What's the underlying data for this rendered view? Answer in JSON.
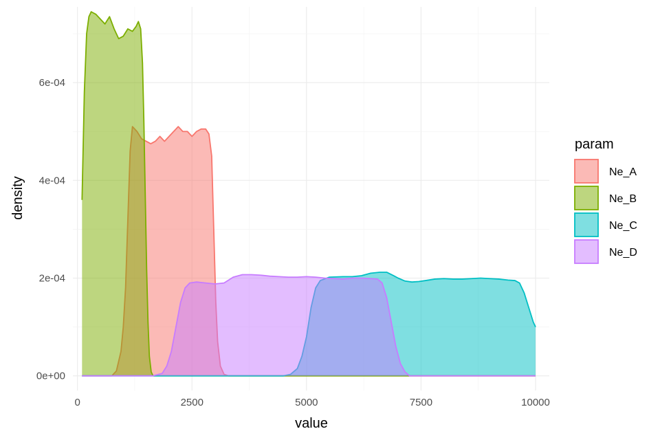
{
  "chart_data": {
    "type": "area",
    "subtype": "density",
    "title": "",
    "xlabel": "value",
    "ylabel": "density",
    "xlim": [
      -100,
      10300
    ],
    "ylim": [
      -3e-05,
      0.000755
    ],
    "x_ticks": [
      0,
      2500,
      5000,
      7500,
      10000
    ],
    "x_tick_labels": [
      "0",
      "2500",
      "5000",
      "7500",
      "10000"
    ],
    "y_ticks": [
      0,
      0.0002,
      0.0004,
      0.0006
    ],
    "y_tick_labels": [
      "0e+00",
      "2e-04",
      "4e-04",
      "6e-04"
    ],
    "grid": true,
    "fill_opacity": 0.5,
    "legend": {
      "title": "param",
      "position": "right"
    },
    "series": [
      {
        "name": "Ne_A",
        "color": "#F8766D",
        "points": [
          [
            100,
            0
          ],
          [
            750,
            0
          ],
          [
            850,
            1e-05
          ],
          [
            950,
            5e-05
          ],
          [
            1000,
            0.0001
          ],
          [
            1050,
            0.00018
          ],
          [
            1100,
            0.00032
          ],
          [
            1150,
            0.00046
          ],
          [
            1200,
            0.00051
          ],
          [
            1300,
            0.0005
          ],
          [
            1400,
            0.000485
          ],
          [
            1500,
            0.00048
          ],
          [
            1600,
            0.000475
          ],
          [
            1700,
            0.00048
          ],
          [
            1800,
            0.00049
          ],
          [
            1900,
            0.00048
          ],
          [
            2000,
            0.00049
          ],
          [
            2100,
            0.0005
          ],
          [
            2200,
            0.00051
          ],
          [
            2300,
            0.0005
          ],
          [
            2400,
            0.0005
          ],
          [
            2500,
            0.00049
          ],
          [
            2600,
            0.0005
          ],
          [
            2700,
            0.000505
          ],
          [
            2800,
            0.000505
          ],
          [
            2870,
            0.000495
          ],
          [
            2930,
            0.00045
          ],
          [
            2960,
            0.00035
          ],
          [
            2990,
            0.00025
          ],
          [
            3020,
            0.00015
          ],
          [
            3060,
            7e-05
          ],
          [
            3120,
            2e-05
          ],
          [
            3200,
            3e-06
          ],
          [
            3300,
            0
          ],
          [
            10000,
            0
          ]
        ]
      },
      {
        "name": "Ne_B",
        "color": "#7CAE00",
        "points": [
          [
            100,
            0.00036
          ],
          [
            150,
            0.00058
          ],
          [
            200,
            0.0007
          ],
          [
            250,
            0.000735
          ],
          [
            300,
            0.000745
          ],
          [
            400,
            0.00074
          ],
          [
            500,
            0.00073
          ],
          [
            600,
            0.00072
          ],
          [
            700,
            0.000735
          ],
          [
            800,
            0.00071
          ],
          [
            900,
            0.00069
          ],
          [
            1000,
            0.000695
          ],
          [
            1100,
            0.00071
          ],
          [
            1200,
            0.000705
          ],
          [
            1280,
            0.000715
          ],
          [
            1330,
            0.000725
          ],
          [
            1380,
            0.00071
          ],
          [
            1420,
            0.00064
          ],
          [
            1450,
            0.00052
          ],
          [
            1480,
            0.00037
          ],
          [
            1510,
            0.00022
          ],
          [
            1540,
            0.00011
          ],
          [
            1570,
            4e-05
          ],
          [
            1610,
            8e-06
          ],
          [
            1650,
            0
          ],
          [
            10000,
            0
          ]
        ]
      },
      {
        "name": "Ne_C",
        "color": "#00BFC4",
        "points": [
          [
            100,
            0
          ],
          [
            4500,
            0
          ],
          [
            4650,
            3e-06
          ],
          [
            4800,
            1.5e-05
          ],
          [
            4900,
            4e-05
          ],
          [
            5000,
            8e-05
          ],
          [
            5100,
            0.00014
          ],
          [
            5200,
            0.00018
          ],
          [
            5300,
            0.000195
          ],
          [
            5500,
            0.000202
          ],
          [
            5800,
            0.000203
          ],
          [
            6000,
            0.000203
          ],
          [
            6200,
            0.000205
          ],
          [
            6400,
            0.00021
          ],
          [
            6600,
            0.000212
          ],
          [
            6750,
            0.000212
          ],
          [
            6900,
            0.000205
          ],
          [
            7000,
            0.0002
          ],
          [
            7150,
            0.000194
          ],
          [
            7300,
            0.000192
          ],
          [
            7450,
            0.000193
          ],
          [
            7600,
            0.000195
          ],
          [
            7800,
            0.000198
          ],
          [
            8000,
            0.000199
          ],
          [
            8200,
            0.000198
          ],
          [
            8400,
            0.000198
          ],
          [
            8600,
            0.000199
          ],
          [
            8800,
            0.0002
          ],
          [
            9000,
            0.000199
          ],
          [
            9200,
            0.000198
          ],
          [
            9400,
            0.000196
          ],
          [
            9550,
            0.000195
          ],
          [
            9650,
            0.00019
          ],
          [
            9750,
            0.00017
          ],
          [
            9850,
            0.00014
          ],
          [
            9950,
            0.00011
          ],
          [
            10000,
            0.0001
          ]
        ]
      },
      {
        "name": "Ne_D",
        "color": "#C77CFF",
        "points": [
          [
            100,
            0
          ],
          [
            1650,
            0
          ],
          [
            1850,
            5e-06
          ],
          [
            1950,
            2e-05
          ],
          [
            2050,
            5e-05
          ],
          [
            2150,
            0.0001
          ],
          [
            2250,
            0.00015
          ],
          [
            2350,
            0.00018
          ],
          [
            2450,
            0.00019
          ],
          [
            2600,
            0.000192
          ],
          [
            2800,
            0.00019
          ],
          [
            3000,
            0.000188
          ],
          [
            3200,
            0.00019
          ],
          [
            3400,
            0.000202
          ],
          [
            3600,
            0.000207
          ],
          [
            3800,
            0.000207
          ],
          [
            4000,
            0.000206
          ],
          [
            4200,
            0.000204
          ],
          [
            4400,
            0.000203
          ],
          [
            4600,
            0.000202
          ],
          [
            4800,
            0.000202
          ],
          [
            5000,
            0.000203
          ],
          [
            5200,
            0.000202
          ],
          [
            5400,
            0.0002
          ],
          [
            5600,
            0.000199
          ],
          [
            5800,
            0.000198
          ],
          [
            6000,
            0.0002
          ],
          [
            6200,
            0.0002
          ],
          [
            6400,
            0.000199
          ],
          [
            6550,
            0.000198
          ],
          [
            6650,
            0.00019
          ],
          [
            6750,
            0.00016
          ],
          [
            6850,
            0.00011
          ],
          [
            6950,
            6e-05
          ],
          [
            7050,
            2.5e-05
          ],
          [
            7150,
            8e-06
          ],
          [
            7250,
            0
          ],
          [
            10000,
            0
          ]
        ]
      }
    ]
  }
}
